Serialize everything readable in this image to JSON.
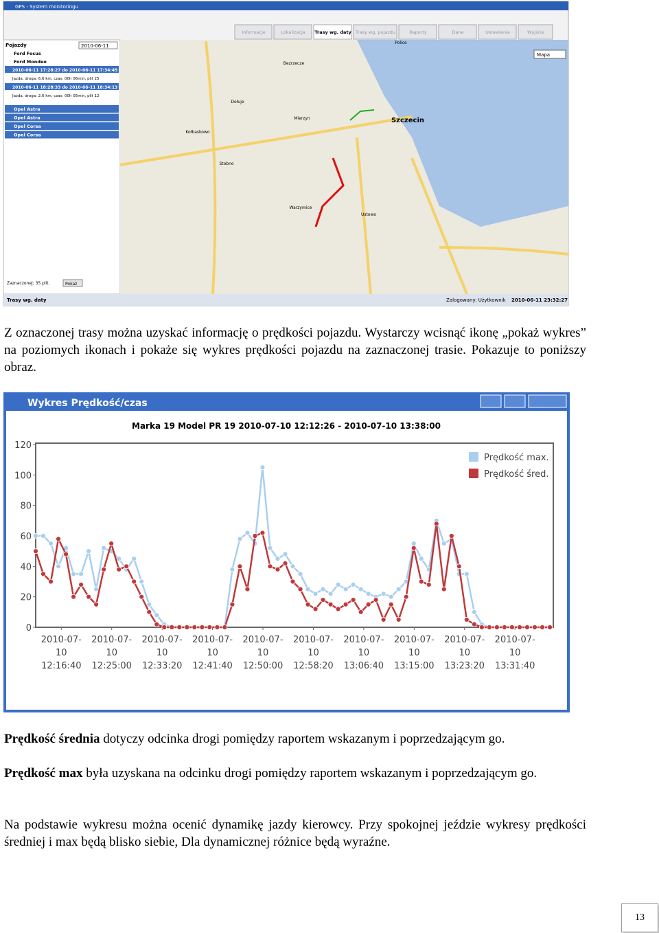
{
  "screenshot": {
    "app_title": "GPS - System monitoringu",
    "tabs": [
      "Informacje",
      "Lokalizacja",
      "Trasy wg. daty",
      "Trasy wg. pojazdu",
      "Raporty",
      "Dane",
      "Ustawienia",
      "Wyjście"
    ],
    "panel_title": "Pojazdy",
    "date": "2010-06-11",
    "vehicles": [
      "Ford Focus",
      "Ford Mondeo"
    ],
    "routes": [
      {
        "time": "2010-06-11 17:28:27 do 2010-06-11 17:34:45",
        "info": "Jazda, droga: 6.6 km, czas: 00h 06min, plit 25"
      },
      {
        "time": "2010-06-11 18:28:33 do 2010-06-11 18:34:13",
        "info": "Jazda, droga: 2.6 km, czas: 00h 05min, plit 12"
      }
    ],
    "other_vehicles": [
      "Opel Astra",
      "Opel Astra",
      "Opel Corsa",
      "Opel Corsa"
    ],
    "selected": "Zaznaczonej: 35 plit.",
    "button": "Pokaż",
    "map_type": "Mapa",
    "map_labels": [
      "Szczecin",
      "Mierzyn",
      "Kołbaskowo",
      "Warzymice",
      "Bezrzecze",
      "Dołuje",
      "Police",
      "Stobno",
      "Ustowo"
    ],
    "status_left": "Trasy wg. daty",
    "status_user": "Zalogowany: Użytkownik",
    "status_time": "2010-06-11 23:32:27"
  },
  "paragraphs": [
    {
      "text": "Z oznaczonej trasy można uzyskać informację o prędkości pojazdu. Wystarczy wcisnąć ikonę „pokaż wykres” na poziomych ikonach i pokaże się wykres prędkości pojazdu na zaznaczonej trasie. Pokazuje to poniższy obraz."
    },
    {
      "bold": "Prędkość średnia",
      "text": " dotyczy odcinka drogi pomiędzy raportem wskazanym i poprzedzającym go."
    },
    {
      "bold": "Prędkość max",
      "text": " była uzyskana na odcinku drogi pomiędzy raportem wskazanym i poprzedzającym go."
    },
    {
      "text": "Na podstawie wykresu można ocenić dynamikę jazdy kierowcy.  Przy spokojnej jeździe wykresy prędkości średniej i max będą blisko siebie, Dla dynamicznej różnice będą wyraźne."
    }
  ],
  "chart": {
    "type": "line",
    "window_title": "Wykres Prędkość/czas",
    "title": "Marka 19 Model PR 19 2010-07-10 12:12:26 - 2010-07-10 13:38:00",
    "xlim": [
      "2010-07-10 12:12:26",
      "2010-07-10 13:38:00"
    ],
    "xticks": [
      "2010-07-10 12:16:40",
      "2010-07-10 12:25:00",
      "2010-07-10 12:33:20",
      "2010-07-10 12:41:40",
      "2010-07-10 12:50:00",
      "2010-07-10 12:58:20",
      "2010-07-10 13:06:40",
      "2010-07-10 13:15:00",
      "2010-07-10 13:23:20",
      "2010-07-10 13:31:40"
    ],
    "ylim": [
      0,
      120
    ],
    "yticks": [
      0,
      20,
      40,
      60,
      80,
      100,
      120
    ],
    "legend": "top-right",
    "x": [
      "2010-07-10 12:12:26",
      "2010-07-10 12:13:41",
      "2010-07-10 12:14:56",
      "2010-07-10 12:16:11",
      "2010-07-10 12:17:26",
      "2010-07-10 12:18:41",
      "2010-07-10 12:19:56",
      "2010-07-10 12:21:11",
      "2010-07-10 12:22:26",
      "2010-07-10 12:23:41",
      "2010-07-10 12:24:56",
      "2010-07-10 12:26:11",
      "2010-07-10 12:27:26",
      "2010-07-10 12:28:41",
      "2010-07-10 12:29:56",
      "2010-07-10 12:31:11",
      "2010-07-10 12:32:26",
      "2010-07-10 12:33:41",
      "2010-07-10 12:34:56",
      "2010-07-10 12:36:11",
      "2010-07-10 12:37:26",
      "2010-07-10 12:38:41",
      "2010-07-10 12:39:56",
      "2010-07-10 12:41:11",
      "2010-07-10 12:42:26",
      "2010-07-10 12:43:41",
      "2010-07-10 12:44:56",
      "2010-07-10 12:46:11",
      "2010-07-10 12:47:26",
      "2010-07-10 12:48:41",
      "2010-07-10 12:49:56",
      "2010-07-10 12:51:11",
      "2010-07-10 12:52:26",
      "2010-07-10 12:53:41",
      "2010-07-10 12:54:56",
      "2010-07-10 12:56:11",
      "2010-07-10 12:57:26",
      "2010-07-10 12:58:41",
      "2010-07-10 12:59:56",
      "2010-07-10 13:01:11",
      "2010-07-10 13:02:26",
      "2010-07-10 13:03:41",
      "2010-07-10 13:04:56",
      "2010-07-10 13:06:11",
      "2010-07-10 13:07:26",
      "2010-07-10 13:08:41",
      "2010-07-10 13:09:56",
      "2010-07-10 13:11:11",
      "2010-07-10 13:12:26",
      "2010-07-10 13:13:41",
      "2010-07-10 13:14:56",
      "2010-07-10 13:16:11",
      "2010-07-10 13:17:26",
      "2010-07-10 13:18:41",
      "2010-07-10 13:19:56",
      "2010-07-10 13:21:11",
      "2010-07-10 13:22:26",
      "2010-07-10 13:23:41",
      "2010-07-10 13:24:56",
      "2010-07-10 13:26:11",
      "2010-07-10 13:27:26",
      "2010-07-10 13:28:41",
      "2010-07-10 13:29:56",
      "2010-07-10 13:31:11",
      "2010-07-10 13:32:26",
      "2010-07-10 13:33:41",
      "2010-07-10 13:34:56",
      "2010-07-10 13:36:11",
      "2010-07-10 13:37:26"
    ],
    "series": [
      {
        "name": "Prędkość max.",
        "color": "#a9cfee",
        "values": [
          60,
          60,
          55,
          40,
          52,
          35,
          35,
          50,
          25,
          52,
          50,
          45,
          38,
          45,
          30,
          15,
          8,
          2,
          0,
          0,
          0,
          0,
          0,
          0,
          0,
          0,
          38,
          58,
          62,
          55,
          105,
          52,
          45,
          48,
          40,
          35,
          25,
          22,
          25,
          22,
          28,
          25,
          28,
          25,
          22,
          20,
          22,
          20,
          25,
          30,
          55,
          45,
          38,
          70,
          55,
          58,
          35,
          35,
          10,
          2,
          0,
          0,
          0,
          0,
          0,
          0,
          0,
          0,
          0
        ]
      },
      {
        "name": "Prędkość śred.",
        "color": "#c0393b",
        "values": [
          50,
          35,
          30,
          58,
          48,
          20,
          28,
          20,
          15,
          38,
          55,
          38,
          40,
          30,
          20,
          10,
          2,
          0,
          0,
          0,
          0,
          0,
          0,
          0,
          0,
          0,
          15,
          40,
          25,
          60,
          62,
          40,
          38,
          42,
          30,
          25,
          15,
          12,
          18,
          15,
          12,
          15,
          18,
          10,
          15,
          18,
          5,
          15,
          5,
          20,
          52,
          30,
          28,
          68,
          25,
          60,
          40,
          5,
          2,
          0,
          0,
          0,
          0,
          0,
          0,
          0,
          0,
          0,
          0
        ]
      }
    ]
  },
  "page_number": "13"
}
